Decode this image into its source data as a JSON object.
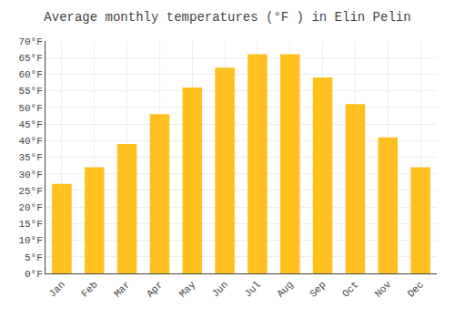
{
  "chart_data": {
    "type": "bar",
    "title": "Average monthly temperatures (°F ) in Elin Pelin",
    "categories": [
      "Jan",
      "Feb",
      "Mar",
      "Apr",
      "May",
      "Jun",
      "Jul",
      "Aug",
      "Sep",
      "Oct",
      "Nov",
      "Dec"
    ],
    "values": [
      27,
      32,
      39,
      48,
      56,
      62,
      66,
      66,
      59,
      51,
      41,
      32
    ],
    "color": "#FFC020",
    "ylim": [
      0,
      70
    ],
    "yticks": [
      {
        "value": 0,
        "label": "0°F"
      },
      {
        "value": 5,
        "label": "5°F"
      },
      {
        "value": 10,
        "label": "10°F"
      },
      {
        "value": 15,
        "label": "15°F"
      },
      {
        "value": 20,
        "label": "20°F"
      },
      {
        "value": 25,
        "label": "25°F"
      },
      {
        "value": 30,
        "label": "30°F"
      },
      {
        "value": 35,
        "label": "35°F"
      },
      {
        "value": 40,
        "label": "40°F"
      },
      {
        "value": 45,
        "label": "45°F"
      },
      {
        "value": 50,
        "label": "50°F"
      },
      {
        "value": 55,
        "label": "55°F"
      },
      {
        "value": 60,
        "label": "60°F"
      },
      {
        "value": 65,
        "label": "65°F"
      },
      {
        "value": 70,
        "label": "70°F"
      }
    ],
    "grid": true
  }
}
